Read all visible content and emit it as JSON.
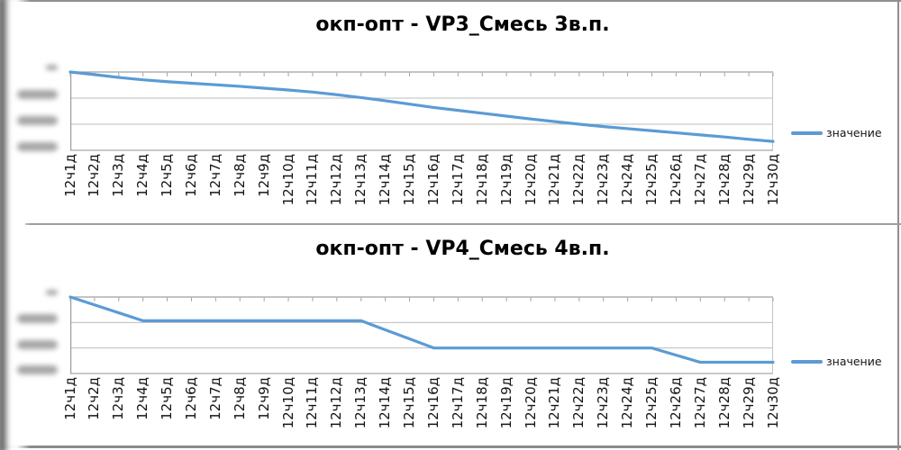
{
  "ui": {
    "accent_line_color": "#5b9bd5",
    "grid_color": "#bcbcbc",
    "axis_color": "#a0a0a0",
    "plot_right_edge_color": "#c4c4c4",
    "frame_color": "#8f8f8f",
    "text_color": "#000000",
    "y_axis_labels": "blurred / illegible in source screenshot"
  },
  "chart_data": [
    {
      "type": "line",
      "title": "окп-опт - VP3_Смесь 3в.п.",
      "legend_label": "значение",
      "legend_position": "right",
      "grid": true,
      "x_categories": [
        "12ч1д",
        "12ч2д",
        "12ч3д",
        "12ч4д",
        "12ч5д",
        "12ч6д",
        "12ч7д",
        "12ч8д",
        "12ч9д",
        "12ч10д",
        "12ч11д",
        "12ч12д",
        "12ч13д",
        "12ч14д",
        "12ч15д",
        "12ч16д",
        "12ч17д",
        "12ч18д",
        "12ч19д",
        "12ч20д",
        "12ч21д",
        "12ч22д",
        "12ч23д",
        "12ч24д",
        "12ч25д",
        "12ч26д",
        "12ч27д",
        "12ч28д",
        "12ч29д",
        "12ч30д"
      ],
      "ylim": [
        -3,
        0
      ],
      "y_tick_count": 4,
      "y_tick_labels_note": "4 tick labels present but blurred out in the screenshot (0 at top, negatives below); values below are estimated in gridline units",
      "series": [
        {
          "name": "значение",
          "values": [
            0,
            -0.1,
            -0.21,
            -0.3,
            -0.37,
            -0.43,
            -0.49,
            -0.55,
            -0.62,
            -0.69,
            -0.77,
            -0.87,
            -0.98,
            -1.1,
            -1.23,
            -1.36,
            -1.47,
            -1.58,
            -1.69,
            -1.8,
            -1.9,
            -2.0,
            -2.09,
            -2.17,
            -2.25,
            -2.33,
            -2.41,
            -2.49,
            -2.58,
            -2.66
          ]
        }
      ]
    },
    {
      "type": "line",
      "title": "окп-опт - VP4_Смесь 4в.п.",
      "legend_label": "значение",
      "legend_position": "right",
      "grid": true,
      "x_categories": [
        "12ч1д",
        "12ч2д",
        "12ч3д",
        "12ч4д",
        "12ч5д",
        "12ч6д",
        "12ч7д",
        "12ч8д",
        "12ч9д",
        "12ч10д",
        "12ч11д",
        "12ч12д",
        "12ч13д",
        "12ч14д",
        "12ч15д",
        "12ч16д",
        "12ч17д",
        "12ч18д",
        "12ч19д",
        "12ч20д",
        "12ч21д",
        "12ч22д",
        "12ч23д",
        "12ч24д",
        "12ч25д",
        "12ч26д",
        "12ч27д",
        "12ч28д",
        "12ч29д",
        "12ч30д"
      ],
      "ylim": [
        -3,
        0
      ],
      "y_tick_count": 4,
      "y_tick_labels_note": "4 tick labels present but blurred out in the screenshot (0 at top, negatives below); values below are estimated in gridline units",
      "series": [
        {
          "name": "значение",
          "values": [
            0,
            -0.31,
            -0.62,
            -0.93,
            -0.93,
            -0.93,
            -0.93,
            -0.93,
            -0.93,
            -0.93,
            -0.93,
            -0.93,
            -0.93,
            -1.29,
            -1.64,
            -2.0,
            -2.0,
            -2.0,
            -2.0,
            -2.0,
            -2.0,
            -2.0,
            -2.0,
            -2.0,
            -2.0,
            -2.28,
            -2.56,
            -2.56,
            -2.56,
            -2.56
          ]
        }
      ]
    }
  ]
}
